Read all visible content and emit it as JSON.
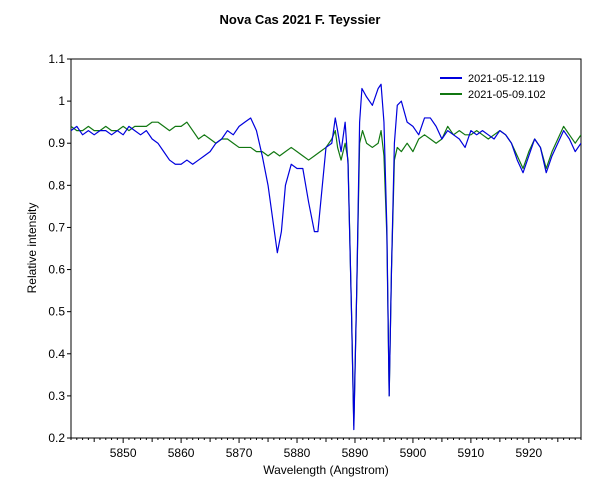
{
  "chart_data": {
    "type": "line",
    "title": "Nova Cas 2021  F. Teyssier",
    "xlabel": "Wavelength (Angstrom)",
    "ylabel": "Relative intensity",
    "xlim": [
      5841,
      5929
    ],
    "ylim": [
      0.2,
      1.1
    ],
    "xticks": [
      5850,
      5860,
      5870,
      5880,
      5890,
      5900,
      5910,
      5920
    ],
    "yticks": [
      0.2,
      0.3,
      0.4,
      0.5,
      0.6,
      0.7,
      0.8,
      0.9,
      1,
      1.1
    ],
    "ytick_labels": [
      "0.2",
      "0.3",
      "0.4",
      "0.5",
      "0.6",
      "0.7",
      "0.8",
      "0.9",
      "1",
      "1.1"
    ],
    "grid": false,
    "legend_position": "top-right",
    "series": [
      {
        "name": "2021-05-12.119",
        "color": "#0000dd",
        "points": [
          [
            5841,
            0.93
          ],
          [
            5842,
            0.94
          ],
          [
            5843,
            0.92
          ],
          [
            5844,
            0.93
          ],
          [
            5845,
            0.92
          ],
          [
            5846,
            0.93
          ],
          [
            5847,
            0.93
          ],
          [
            5848,
            0.92
          ],
          [
            5849,
            0.93
          ],
          [
            5850,
            0.92
          ],
          [
            5851,
            0.94
          ],
          [
            5852,
            0.93
          ],
          [
            5853,
            0.92
          ],
          [
            5854,
            0.93
          ],
          [
            5855,
            0.91
          ],
          [
            5856,
            0.9
          ],
          [
            5857,
            0.88
          ],
          [
            5858,
            0.86
          ],
          [
            5859,
            0.85
          ],
          [
            5860,
            0.85
          ],
          [
            5861,
            0.86
          ],
          [
            5862,
            0.85
          ],
          [
            5863,
            0.86
          ],
          [
            5864,
            0.87
          ],
          [
            5865,
            0.88
          ],
          [
            5866,
            0.9
          ],
          [
            5867,
            0.91
          ],
          [
            5868,
            0.93
          ],
          [
            5869,
            0.92
          ],
          [
            5870,
            0.94
          ],
          [
            5871,
            0.95
          ],
          [
            5872,
            0.96
          ],
          [
            5873,
            0.93
          ],
          [
            5874,
            0.87
          ],
          [
            5875,
            0.8
          ],
          [
            5876,
            0.7
          ],
          [
            5876.6,
            0.64
          ],
          [
            5877.3,
            0.69
          ],
          [
            5878,
            0.8
          ],
          [
            5879,
            0.85
          ],
          [
            5880,
            0.84
          ],
          [
            5881,
            0.84
          ],
          [
            5882,
            0.76
          ],
          [
            5883,
            0.69
          ],
          [
            5883.6,
            0.69
          ],
          [
            5884.3,
            0.79
          ],
          [
            5885,
            0.89
          ],
          [
            5886,
            0.9
          ],
          [
            5886.6,
            0.96
          ],
          [
            5887,
            0.93
          ],
          [
            5887.6,
            0.88
          ],
          [
            5888.3,
            0.95
          ],
          [
            5888.8,
            0.85
          ],
          [
            5889.4,
            0.5
          ],
          [
            5889.8,
            0.22
          ],
          [
            5890.3,
            0.55
          ],
          [
            5890.8,
            0.95
          ],
          [
            5891.2,
            1.03
          ],
          [
            5892,
            1.01
          ],
          [
            5893,
            0.99
          ],
          [
            5894,
            1.03
          ],
          [
            5894.5,
            1.04
          ],
          [
            5895,
            0.95
          ],
          [
            5895.5,
            0.7
          ],
          [
            5895.9,
            0.3
          ],
          [
            5896.3,
            0.6
          ],
          [
            5896.8,
            0.9
          ],
          [
            5897.3,
            0.99
          ],
          [
            5898,
            1.0
          ],
          [
            5899,
            0.95
          ],
          [
            5900,
            0.94
          ],
          [
            5901,
            0.92
          ],
          [
            5902,
            0.96
          ],
          [
            5903,
            0.96
          ],
          [
            5904,
            0.94
          ],
          [
            5905,
            0.91
          ],
          [
            5906,
            0.93
          ],
          [
            5907,
            0.92
          ],
          [
            5908,
            0.91
          ],
          [
            5909,
            0.89
          ],
          [
            5910,
            0.93
          ],
          [
            5911,
            0.92
          ],
          [
            5912,
            0.93
          ],
          [
            5913,
            0.92
          ],
          [
            5914,
            0.91
          ],
          [
            5915,
            0.93
          ],
          [
            5916,
            0.92
          ],
          [
            5917,
            0.9
          ],
          [
            5918,
            0.86
          ],
          [
            5919,
            0.83
          ],
          [
            5920,
            0.87
          ],
          [
            5921,
            0.91
          ],
          [
            5922,
            0.89
          ],
          [
            5923,
            0.83
          ],
          [
            5924,
            0.87
          ],
          [
            5925,
            0.9
          ],
          [
            5926,
            0.93
          ],
          [
            5927,
            0.91
          ],
          [
            5928,
            0.88
          ],
          [
            5929,
            0.9
          ]
        ]
      },
      {
        "name": "2021-05-09.102",
        "color": "#117711",
        "points": [
          [
            5841,
            0.94
          ],
          [
            5842,
            0.93
          ],
          [
            5843,
            0.93
          ],
          [
            5844,
            0.94
          ],
          [
            5845,
            0.93
          ],
          [
            5846,
            0.93
          ],
          [
            5847,
            0.94
          ],
          [
            5848,
            0.93
          ],
          [
            5849,
            0.93
          ],
          [
            5850,
            0.94
          ],
          [
            5851,
            0.93
          ],
          [
            5852,
            0.94
          ],
          [
            5853,
            0.94
          ],
          [
            5854,
            0.94
          ],
          [
            5855,
            0.95
          ],
          [
            5856,
            0.95
          ],
          [
            5857,
            0.94
          ],
          [
            5858,
            0.93
          ],
          [
            5859,
            0.94
          ],
          [
            5860,
            0.94
          ],
          [
            5861,
            0.95
          ],
          [
            5862,
            0.93
          ],
          [
            5863,
            0.91
          ],
          [
            5864,
            0.92
          ],
          [
            5865,
            0.91
          ],
          [
            5866,
            0.9
          ],
          [
            5867,
            0.91
          ],
          [
            5868,
            0.91
          ],
          [
            5869,
            0.9
          ],
          [
            5870,
            0.89
          ],
          [
            5871,
            0.89
          ],
          [
            5872,
            0.89
          ],
          [
            5873,
            0.88
          ],
          [
            5874,
            0.88
          ],
          [
            5875,
            0.87
          ],
          [
            5876,
            0.88
          ],
          [
            5877,
            0.87
          ],
          [
            5878,
            0.88
          ],
          [
            5879,
            0.89
          ],
          [
            5880,
            0.88
          ],
          [
            5881,
            0.87
          ],
          [
            5882,
            0.86
          ],
          [
            5883,
            0.87
          ],
          [
            5884,
            0.88
          ],
          [
            5885,
            0.89
          ],
          [
            5886,
            0.91
          ],
          [
            5886.6,
            0.93
          ],
          [
            5887,
            0.89
          ],
          [
            5887.6,
            0.86
          ],
          [
            5888.3,
            0.9
          ],
          [
            5888.8,
            0.86
          ],
          [
            5889.4,
            0.5
          ],
          [
            5889.8,
            0.23
          ],
          [
            5890.3,
            0.55
          ],
          [
            5890.8,
            0.9
          ],
          [
            5891.3,
            0.93
          ],
          [
            5892,
            0.9
          ],
          [
            5893,
            0.89
          ],
          [
            5894,
            0.9
          ],
          [
            5894.5,
            0.93
          ],
          [
            5895,
            0.87
          ],
          [
            5895.5,
            0.68
          ],
          [
            5895.9,
            0.3
          ],
          [
            5896.3,
            0.6
          ],
          [
            5896.8,
            0.86
          ],
          [
            5897.3,
            0.89
          ],
          [
            5898,
            0.88
          ],
          [
            5899,
            0.9
          ],
          [
            5900,
            0.88
          ],
          [
            5901,
            0.91
          ],
          [
            5902,
            0.92
          ],
          [
            5903,
            0.91
          ],
          [
            5904,
            0.9
          ],
          [
            5905,
            0.91
          ],
          [
            5906,
            0.94
          ],
          [
            5907,
            0.92
          ],
          [
            5908,
            0.93
          ],
          [
            5909,
            0.92
          ],
          [
            5910,
            0.92
          ],
          [
            5911,
            0.93
          ],
          [
            5912,
            0.92
          ],
          [
            5913,
            0.91
          ],
          [
            5914,
            0.92
          ],
          [
            5915,
            0.93
          ],
          [
            5916,
            0.92
          ],
          [
            5917,
            0.9
          ],
          [
            5918,
            0.87
          ],
          [
            5919,
            0.84
          ],
          [
            5920,
            0.88
          ],
          [
            5921,
            0.91
          ],
          [
            5922,
            0.89
          ],
          [
            5923,
            0.84
          ],
          [
            5924,
            0.88
          ],
          [
            5925,
            0.91
          ],
          [
            5926,
            0.94
          ],
          [
            5927,
            0.92
          ],
          [
            5928,
            0.9
          ],
          [
            5929,
            0.92
          ]
        ]
      }
    ]
  }
}
